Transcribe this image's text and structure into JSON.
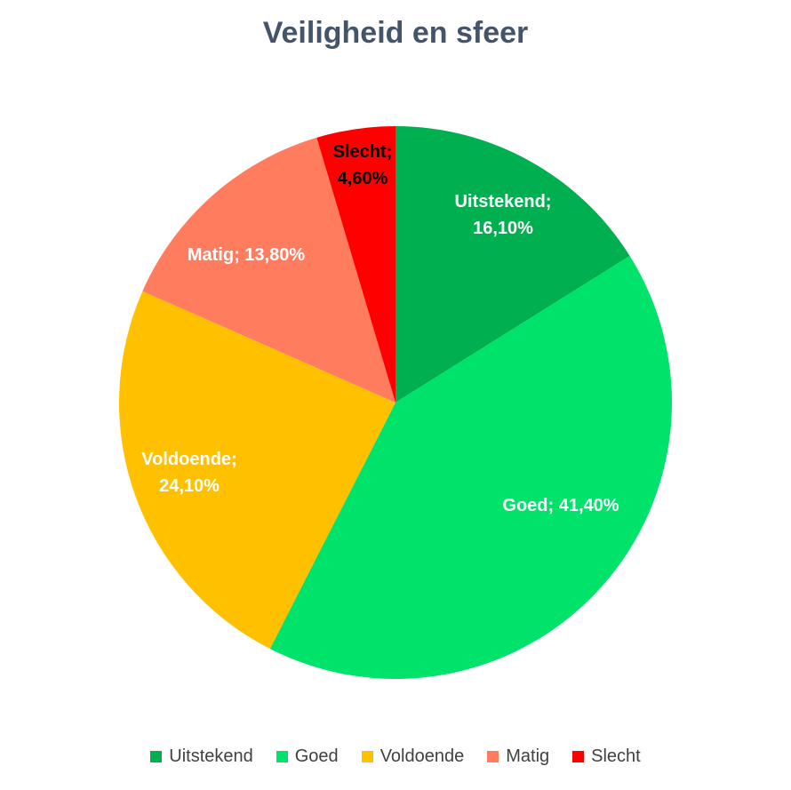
{
  "chart_data": {
    "type": "pie",
    "title": "Veiligheid en sfeer",
    "slices": [
      {
        "name": "Uitstekend",
        "value": 16.1,
        "label_name": "Uitstekend;",
        "label_value": "16,10%",
        "color": "#00b050",
        "label_color": "#ffffff"
      },
      {
        "name": "Goed",
        "value": 41.4,
        "label_name": "Goed; 41,40%",
        "label_value": "",
        "color": "#00e36b",
        "label_color": "#ffffff"
      },
      {
        "name": "Voldoende",
        "value": 24.1,
        "label_name": "Voldoende;",
        "label_value": "24,10%",
        "color": "#ffc000",
        "label_color": "#ffffff"
      },
      {
        "name": "Matig",
        "value": 13.8,
        "label_name": "Matig; 13,80%",
        "label_value": "",
        "color": "#ff7c5f",
        "label_color": "#ffffff"
      },
      {
        "name": "Slecht",
        "value": 4.6,
        "label_name": "Slecht;",
        "label_value": "4,60%",
        "color": "#ff0000",
        "label_color": "#000000"
      }
    ],
    "legend": [
      "Uitstekend",
      "Goed",
      "Voldoende",
      "Matig",
      "Slecht"
    ],
    "legend_position": "bottom"
  }
}
